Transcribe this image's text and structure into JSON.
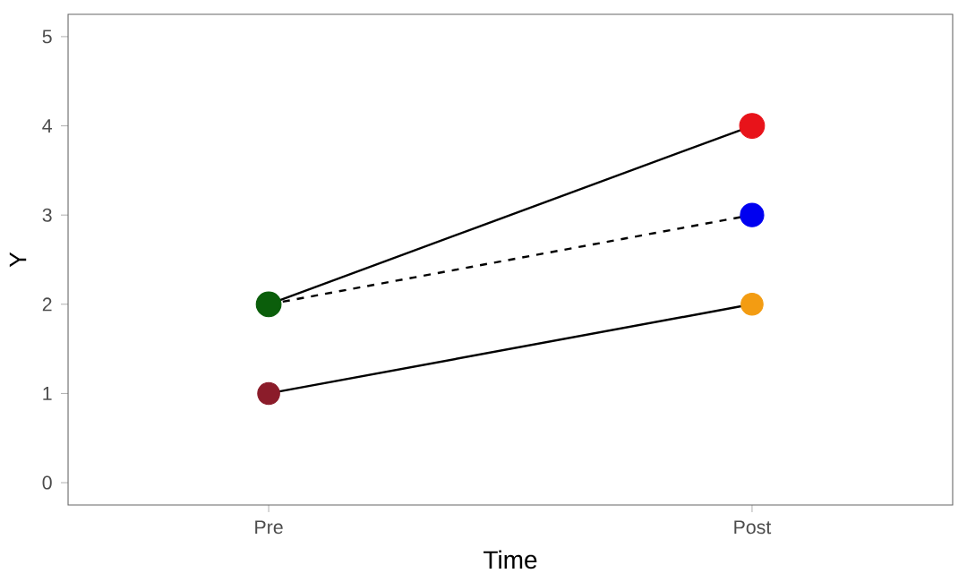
{
  "chart_data": {
    "type": "line",
    "xlabel": "Time",
    "ylabel": "Y",
    "categories": [
      "Pre",
      "Post"
    ],
    "series": [
      {
        "color": "#000000",
        "colors": [
          "#0b5e0b",
          "#e8131a"
        ],
        "values": [
          2,
          4
        ],
        "line_style": "solid"
      },
      {
        "color": "#000000",
        "colors": [
          "#0b5e0b",
          "#0000f0"
        ],
        "values": [
          2,
          3
        ],
        "line_style": "dashed"
      },
      {
        "color": "#000000",
        "colors": [
          "#8b1c2a",
          "#f39c12"
        ],
        "values": [
          1,
          2
        ],
        "line_style": "solid"
      }
    ],
    "ylim": [
      -0.25,
      5.25
    ],
    "yticks": [
      0,
      1,
      2,
      3,
      4,
      5
    ],
    "marker": "circle",
    "grid": false
  }
}
